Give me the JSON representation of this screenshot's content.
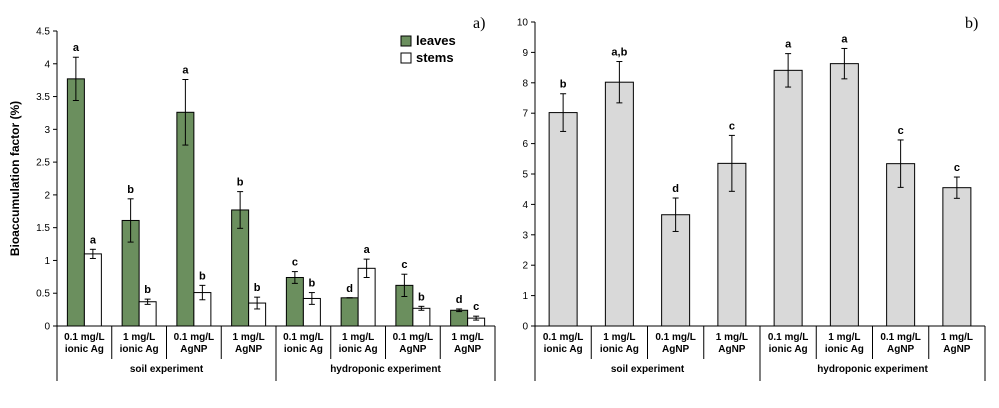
{
  "chart_data": [
    {
      "type": "bar",
      "panel_label": "a)",
      "ylabel": "Bioaccumulation factor (%)",
      "ylim": [
        0,
        4.5
      ],
      "yticks": [
        "0",
        "0.5",
        "1",
        "1.5",
        "2",
        "2.5",
        "3",
        "3.5",
        "4",
        "4.5"
      ],
      "categories": [
        [
          "0.1 mg/L",
          "ionic Ag"
        ],
        [
          "1 mg/L",
          "ionic Ag"
        ],
        [
          "0.1 mg/L",
          "AgNP"
        ],
        [
          "1 mg/L",
          "AgNP"
        ],
        [
          "0.1 mg/L",
          "ionic Ag"
        ],
        [
          "1 mg/L",
          "ionic Ag"
        ],
        [
          "0.1 mg/L",
          "AgNP"
        ],
        [
          "1 mg/L",
          "AgNP"
        ]
      ],
      "groups": [
        {
          "label": "soil experiment",
          "count": 4
        },
        {
          "label": "hydroponic experiment",
          "count": 4
        }
      ],
      "legend_position": "top-right",
      "series": [
        {
          "name": "leaves",
          "color": "#6b8f5e",
          "values": [
            3.77,
            1.61,
            3.26,
            1.77,
            0.74,
            0.43,
            0.62,
            0.24
          ],
          "errors": [
            0.33,
            0.33,
            0.5,
            0.28,
            0.09,
            0.0,
            0.17,
            0.02
          ],
          "letters": [
            "a",
            "b",
            "a",
            "b",
            "c",
            "d",
            "c",
            "d"
          ]
        },
        {
          "name": "stems",
          "color": "#ffffff",
          "values": [
            1.1,
            0.37,
            0.51,
            0.35,
            0.42,
            0.88,
            0.27,
            0.12
          ],
          "errors": [
            0.07,
            0.04,
            0.11,
            0.09,
            0.09,
            0.14,
            0.03,
            0.03
          ],
          "letters": [
            "a",
            "b",
            "b",
            "b",
            "b",
            "a",
            "b",
            "c"
          ]
        }
      ]
    },
    {
      "type": "bar",
      "panel_label": "b)",
      "ylabel": "",
      "ylim": [
        0,
        10
      ],
      "yticks": [
        "0",
        "1",
        "2",
        "3",
        "4",
        "5",
        "6",
        "7",
        "8",
        "9",
        "10"
      ],
      "categories": [
        [
          "0.1 mg/L",
          "ionic Ag"
        ],
        [
          "1 mg/L",
          "ionic Ag"
        ],
        [
          "0.1 mg/L",
          "AgNP"
        ],
        [
          "1 mg/L",
          "AgNP"
        ],
        [
          "0.1 mg/L",
          "ionic Ag"
        ],
        [
          "1 mg/L",
          "ionic Ag"
        ],
        [
          "0.1 mg/L",
          "AgNP"
        ],
        [
          "1 mg/L",
          "AgNP"
        ]
      ],
      "groups": [
        {
          "label": "soil experiment",
          "count": 4
        },
        {
          "label": "hydroponic experiment",
          "count": 4
        }
      ],
      "series": [
        {
          "color": "#d9d9d9",
          "values": [
            7.02,
            8.02,
            3.66,
            5.35,
            8.41,
            8.63,
            5.34,
            4.55
          ],
          "errors": [
            0.62,
            0.68,
            0.55,
            0.92,
            0.55,
            0.5,
            0.78,
            0.35
          ],
          "letters": [
            "b",
            "a,b",
            "d",
            "c",
            "a",
            "a",
            "c",
            "c"
          ]
        }
      ]
    }
  ]
}
